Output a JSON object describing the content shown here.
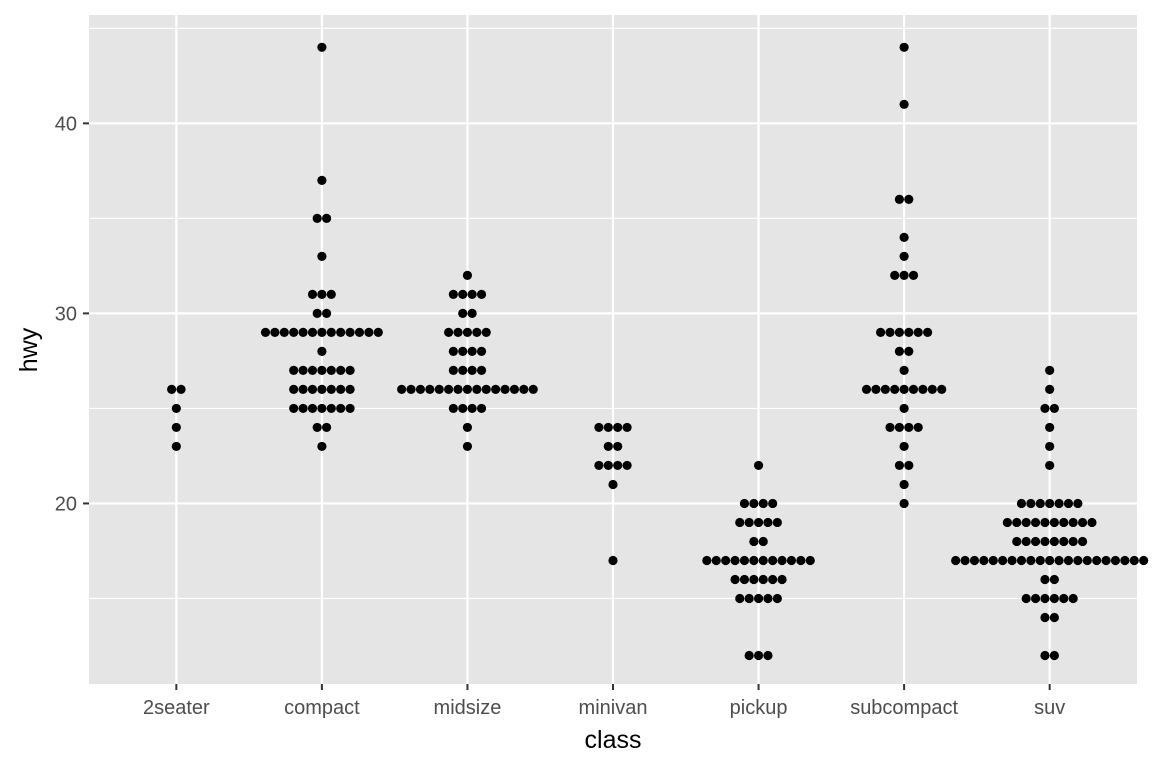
{
  "chart_data": {
    "type": "scatter",
    "subtype": "dotplot",
    "title": "",
    "xlabel": "class",
    "ylabel": "hwy",
    "categories": [
      "2seater",
      "compact",
      "midsize",
      "minivan",
      "pickup",
      "subcompact",
      "suv"
    ],
    "y_ticks": [
      20,
      30,
      40
    ],
    "ylim": [
      10.5,
      45.7
    ],
    "grid": true,
    "legend": "none",
    "colors": {
      "panel": "#e5e5e5",
      "grid": "#ffffff",
      "point": "#000000",
      "tick_text": "#4d4d4d"
    },
    "stacks": {
      "2seater": [
        {
          "y": 26,
          "n": 2
        },
        {
          "y": 25,
          "n": 1
        },
        {
          "y": 24,
          "n": 1
        },
        {
          "y": 23,
          "n": 1
        }
      ],
      "compact": [
        {
          "y": 44,
          "n": 1
        },
        {
          "y": 37,
          "n": 1
        },
        {
          "y": 35,
          "n": 2
        },
        {
          "y": 33,
          "n": 1
        },
        {
          "y": 31,
          "n": 3
        },
        {
          "y": 30,
          "n": 2
        },
        {
          "y": 29,
          "n": 13
        },
        {
          "y": 28,
          "n": 1
        },
        {
          "y": 27,
          "n": 7
        },
        {
          "y": 26,
          "n": 7
        },
        {
          "y": 25,
          "n": 7
        },
        {
          "y": 24,
          "n": 2
        },
        {
          "y": 23,
          "n": 1
        }
      ],
      "midsize": [
        {
          "y": 32,
          "n": 1
        },
        {
          "y": 31,
          "n": 4
        },
        {
          "y": 30,
          "n": 2
        },
        {
          "y": 29,
          "n": 5
        },
        {
          "y": 28,
          "n": 4
        },
        {
          "y": 27,
          "n": 4
        },
        {
          "y": 26,
          "n": 15
        },
        {
          "y": 25,
          "n": 4
        },
        {
          "y": 24,
          "n": 1
        },
        {
          "y": 23,
          "n": 1
        }
      ],
      "minivan": [
        {
          "y": 24,
          "n": 4
        },
        {
          "y": 23,
          "n": 2
        },
        {
          "y": 22,
          "n": 4
        },
        {
          "y": 21,
          "n": 1
        },
        {
          "y": 17,
          "n": 1
        }
      ],
      "pickup": [
        {
          "y": 22,
          "n": 1
        },
        {
          "y": 20,
          "n": 4
        },
        {
          "y": 19,
          "n": 5
        },
        {
          "y": 18,
          "n": 2
        },
        {
          "y": 17,
          "n": 12
        },
        {
          "y": 16,
          "n": 6
        },
        {
          "y": 15,
          "n": 5
        },
        {
          "y": 12,
          "n": 3
        }
      ],
      "subcompact": [
        {
          "y": 44,
          "n": 1
        },
        {
          "y": 41,
          "n": 1
        },
        {
          "y": 36,
          "n": 2
        },
        {
          "y": 34,
          "n": 1
        },
        {
          "y": 33,
          "n": 1
        },
        {
          "y": 32,
          "n": 3
        },
        {
          "y": 29,
          "n": 6
        },
        {
          "y": 28,
          "n": 2
        },
        {
          "y": 27,
          "n": 1
        },
        {
          "y": 26,
          "n": 9
        },
        {
          "y": 25,
          "n": 1
        },
        {
          "y": 24,
          "n": 4
        },
        {
          "y": 23,
          "n": 1
        },
        {
          "y": 22,
          "n": 2
        },
        {
          "y": 21,
          "n": 1
        },
        {
          "y": 20,
          "n": 1
        }
      ],
      "suv": [
        {
          "y": 27,
          "n": 1
        },
        {
          "y": 26,
          "n": 1
        },
        {
          "y": 25,
          "n": 2
        },
        {
          "y": 24,
          "n": 1
        },
        {
          "y": 23,
          "n": 1
        },
        {
          "y": 22,
          "n": 1
        },
        {
          "y": 20,
          "n": 7
        },
        {
          "y": 19,
          "n": 10
        },
        {
          "y": 18,
          "n": 8
        },
        {
          "y": 17,
          "n": 21
        },
        {
          "y": 16,
          "n": 2
        },
        {
          "y": 15,
          "n": 6
        },
        {
          "y": 14,
          "n": 2
        },
        {
          "y": 12,
          "n": 2
        }
      ]
    }
  }
}
